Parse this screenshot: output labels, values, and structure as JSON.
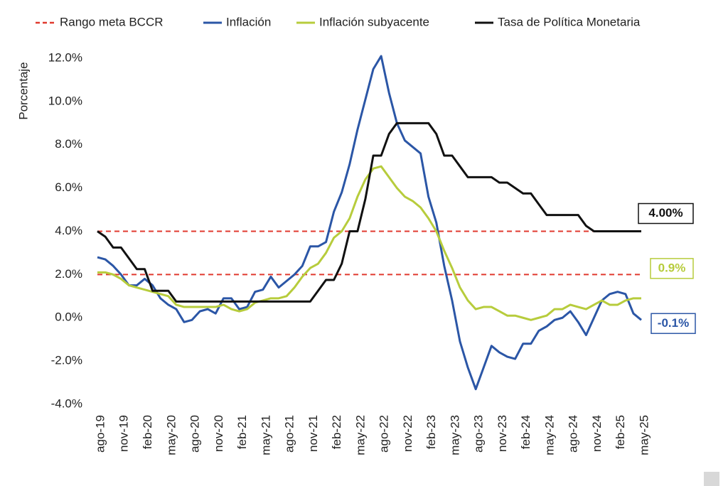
{
  "chart_data": {
    "type": "line",
    "ylabel": "Porcentaje",
    "categories": [
      "ago-19",
      null,
      null,
      "nov-19",
      null,
      null,
      "feb-20",
      null,
      null,
      "may-20",
      null,
      null,
      "ago-20",
      null,
      null,
      "nov-20",
      null,
      null,
      "feb-21",
      null,
      null,
      "may-21",
      null,
      null,
      "ago-21",
      null,
      null,
      "nov-21",
      null,
      null,
      "feb-22",
      null,
      null,
      "may-22",
      null,
      null,
      "ago-22",
      null,
      null,
      "nov-22",
      null,
      null,
      "feb-23",
      null,
      null,
      "may-23",
      null,
      null,
      "ago-23",
      null,
      null,
      "nov-23",
      null,
      null,
      "feb-24",
      null,
      null,
      "may-24",
      null,
      null,
      "ago-24",
      null,
      null,
      "nov-24",
      null,
      null,
      "feb-25",
      null,
      null,
      "may-25"
    ],
    "reference_lines": {
      "name": "Rango meta BCCR",
      "color": "#e03a2f",
      "values": [
        2,
        4
      ]
    },
    "series": [
      {
        "name": "Inflación",
        "color": "#2b56a6",
        "end_label": "-0.1%",
        "values": [
          2.8,
          2.7,
          2.4,
          2.0,
          1.5,
          1.5,
          1.8,
          1.5,
          0.9,
          0.6,
          0.4,
          -0.2,
          -0.1,
          0.3,
          0.4,
          0.2,
          0.9,
          0.9,
          0.4,
          0.5,
          1.2,
          1.3,
          1.9,
          1.4,
          1.7,
          2.0,
          2.4,
          3.3,
          3.3,
          3.5,
          4.9,
          5.8,
          7.1,
          8.7,
          10.1,
          11.5,
          12.1,
          10.4,
          9.0,
          8.2,
          7.9,
          7.6,
          5.6,
          4.4,
          2.4,
          0.8,
          -1.1,
          -2.3,
          -3.3,
          -2.3,
          -1.3,
          -1.6,
          -1.8,
          -1.9,
          -1.2,
          -1.2,
          -0.6,
          -0.4,
          -0.1,
          0.0,
          0.3,
          -0.2,
          -0.8,
          0.0,
          0.8,
          1.1,
          1.2,
          1.1,
          0.2,
          -0.1
        ]
      },
      {
        "name": "Inflación subyacente",
        "color": "#b7cc3c",
        "end_label": "0.9%",
        "values": [
          2.1,
          2.1,
          2.0,
          1.8,
          1.5,
          1.4,
          1.3,
          1.2,
          1.1,
          1.0,
          0.6,
          0.5,
          0.5,
          0.5,
          0.5,
          0.5,
          0.6,
          0.4,
          0.3,
          0.4,
          0.7,
          0.8,
          0.9,
          0.9,
          1.0,
          1.4,
          1.9,
          2.3,
          2.5,
          3.0,
          3.7,
          4.0,
          4.6,
          5.6,
          6.4,
          6.9,
          7.0,
          6.5,
          6.0,
          5.6,
          5.4,
          5.1,
          4.6,
          4.0,
          3.1,
          2.3,
          1.4,
          0.8,
          0.4,
          0.5,
          0.5,
          0.3,
          0.1,
          0.1,
          0.0,
          -0.1,
          0.0,
          0.1,
          0.4,
          0.4,
          0.6,
          0.5,
          0.4,
          0.6,
          0.8,
          0.6,
          0.6,
          0.8,
          0.9,
          0.9
        ]
      },
      {
        "name": "Tasa de Política Monetaria",
        "color": "#111111",
        "end_label": "4.00%",
        "values": [
          4.0,
          3.75,
          3.25,
          3.25,
          2.75,
          2.25,
          2.25,
          1.25,
          1.25,
          1.25,
          0.75,
          0.75,
          0.75,
          0.75,
          0.75,
          0.75,
          0.75,
          0.75,
          0.75,
          0.75,
          0.75,
          0.75,
          0.75,
          0.75,
          0.75,
          0.75,
          0.75,
          0.75,
          1.25,
          1.75,
          1.75,
          2.5,
          4.0,
          4.0,
          5.5,
          7.5,
          7.5,
          8.5,
          9.0,
          9.0,
          9.0,
          9.0,
          9.0,
          8.5,
          7.5,
          7.5,
          7.0,
          6.5,
          6.5,
          6.5,
          6.5,
          6.25,
          6.25,
          6.0,
          5.75,
          5.75,
          5.25,
          4.75,
          4.75,
          4.75,
          4.75,
          4.75,
          4.25,
          4.0,
          4.0,
          4.0,
          4.0,
          4.0,
          4.0,
          4.0
        ]
      }
    ],
    "ylim": [
      -4,
      12
    ],
    "yticks": [
      {
        "value": -4,
        "label": "-4.0%"
      },
      {
        "value": -2,
        "label": "-2.0%"
      },
      {
        "value": 0,
        "label": "0.0%"
      },
      {
        "value": 2,
        "label": "2.0%"
      },
      {
        "value": 4,
        "label": "4.0%"
      },
      {
        "value": 6,
        "label": "6.0%"
      },
      {
        "value": 8,
        "label": "8.0%"
      },
      {
        "value": 10,
        "label": "10.0%"
      },
      {
        "value": 12,
        "label": "12.0%"
      }
    ],
    "grid": false,
    "legend": "top"
  }
}
